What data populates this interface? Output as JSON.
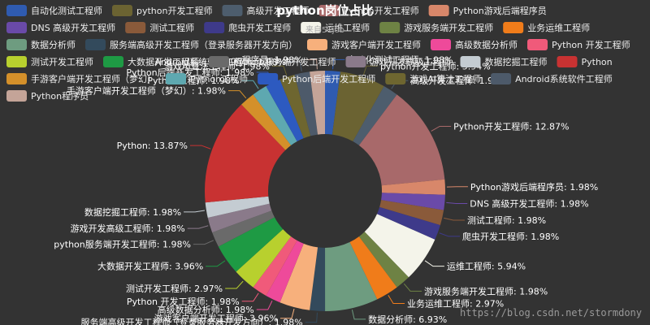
{
  "chart_data": {
    "type": "pie",
    "title": "python岗位占比",
    "subtitle": "来自51job",
    "legend_position": "top",
    "donut": true,
    "series_name": "",
    "slices": [
      {
        "name": "自动化测试工程师",
        "value": 1.98,
        "color": "#2f5bb0"
      },
      {
        "name": "python开发工程师",
        "value": 5.94,
        "color": "#6b6332"
      },
      {
        "name": "高级开发工程师",
        "value": 1.98,
        "color": "#4d5d6d"
      },
      {
        "name": "Python开发工程师",
        "value": 12.87,
        "color": "#a8696a"
      },
      {
        "name": "Python游戏后端程序员",
        "value": 1.98,
        "color": "#d8876a"
      },
      {
        "name": "DNS 高级开发工程师",
        "value": 1.98,
        "color": "#6a4aa8"
      },
      {
        "name": "测试工程师",
        "value": 1.98,
        "color": "#8a5a3a"
      },
      {
        "name": "爬虫开发工程师",
        "value": 1.98,
        "color": "#3e3a8a"
      },
      {
        "name": "运维工程师",
        "value": 5.94,
        "color": "#f4f4ea"
      },
      {
        "name": "游戏服务端开发工程师",
        "value": 1.98,
        "color": "#6e8244"
      },
      {
        "name": "业务运维工程师",
        "value": 2.97,
        "color": "#f07c1a"
      },
      {
        "name": "数据分析师",
        "value": 6.93,
        "color": "#6e9c80"
      },
      {
        "name": "服务端高级开发工程师（登录服务器开发方向）",
        "value": 1.98,
        "color": "#334a5c"
      },
      {
        "name": "游戏客户端开发工程师",
        "value": 3.96,
        "color": "#f7b07c"
      },
      {
        "name": "高级数据分析师",
        "value": 1.98,
        "color": "#ee4a9a"
      },
      {
        "name": "Python 开发工程师",
        "value": 1.98,
        "color": "#f05a7a"
      },
      {
        "name": "测试开发工程师",
        "value": 2.97,
        "color": "#b8d02e"
      },
      {
        "name": "大数据开发工程师",
        "value": 3.96,
        "color": "#1e9a44"
      },
      {
        "name": "python服务端开发工程师",
        "value": 1.98,
        "color": "#6a6a6a"
      },
      {
        "name": "游戏开发高级工程师",
        "value": 1.98,
        "color": "#8a7a8a"
      },
      {
        "name": "数据挖掘工程师",
        "value": 1.98,
        "color": "#c4ccd2"
      },
      {
        "name": "Python",
        "value": 13.87,
        "color": "#c83232"
      },
      {
        "name": "手游客户端开发工程师（梦幻）",
        "value": 1.98,
        "color": "#d4902a"
      },
      {
        "name": "Python工程师",
        "value": 1.98,
        "color": "#5ea8b0"
      },
      {
        "name": "Python后端开发工程师",
        "value": 1.98,
        "color": "#2d5ac0"
      },
      {
        "name": "游戏AI算法工程师",
        "value": 1.98,
        "color": "#6e6630"
      },
      {
        "name": "Android系统软件工程师",
        "value": 1.98,
        "color": "#4d5a6a"
      },
      {
        "name": "Python程序员",
        "value": 1.98,
        "color": "#c4a498"
      }
    ]
  },
  "watermark": "https://blog.csdn.net/stormdony"
}
